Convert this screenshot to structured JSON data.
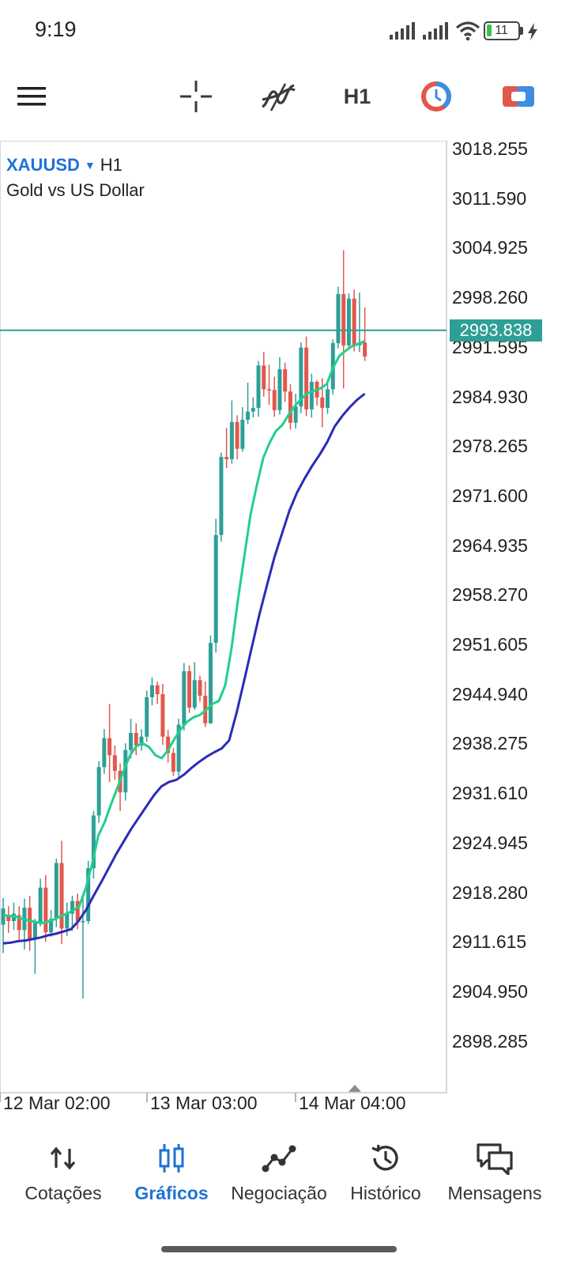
{
  "status_bar": {
    "time": "9:19",
    "battery_level": "11",
    "icons": [
      "signal-1-icon",
      "signal-2-icon",
      "wifi-icon",
      "battery-icon",
      "charging-icon"
    ]
  },
  "toolbar": {
    "icons": [
      "menu-icon",
      "crosshair-icon",
      "indicators-icon",
      "period-icon",
      "trade-icon"
    ],
    "timeframe": "H1"
  },
  "chart": {
    "symbol": "XAUUSD",
    "timeframe": "H1",
    "description": "Gold vs US Dollar",
    "current_price": "2993.838",
    "price_ticks": [
      "3018.255",
      "3011.590",
      "3004.925",
      "2998.260",
      "2991.595",
      "2984.930",
      "2978.265",
      "2971.600",
      "2964.935",
      "2958.270",
      "2951.605",
      "2944.940",
      "2938.275",
      "2931.610",
      "2924.945",
      "2918.280",
      "2911.615",
      "2904.950",
      "2898.285"
    ],
    "time_ticks": [
      "12 Mar 02:00",
      "13 Mar 03:00",
      "14 Mar 04:00"
    ],
    "colors": {
      "bull": "#2e9f97",
      "bear": "#e2574c",
      "ma_fast": "#21d08a",
      "ma_slow": "#2b2bb8",
      "price_line": "#2e9f97"
    }
  },
  "chart_data": {
    "type": "candlestick",
    "ylim": [
      2894.0,
      3021.0
    ],
    "x_ticks": [
      "12 Mar 02:00",
      "13 Mar 03:00",
      "14 Mar 04:00"
    ],
    "y_ticks": [
      3018.255,
      3011.59,
      3004.925,
      2998.26,
      2991.595,
      2984.93,
      2978.265,
      2971.6,
      2964.935,
      2958.27,
      2951.605,
      2944.94,
      2938.275,
      2931.61,
      2924.945,
      2918.28,
      2911.615,
      2904.95,
      2898.285
    ],
    "current_price": 2993.838,
    "candles": [
      [
        2913.9,
        2916.1,
        2910.1,
        2917.5
      ],
      [
        2915.2,
        2914.4,
        2912.8,
        2916.4
      ],
      [
        2914.4,
        2915.4,
        2913.2,
        2916.9
      ],
      [
        2915.2,
        2913.2,
        2911.9,
        2916.4
      ],
      [
        2913.2,
        2916.2,
        2910.6,
        2917.4
      ],
      [
        2916.2,
        2911.9,
        2910.4,
        2917.8
      ],
      [
        2911.9,
        2914.2,
        2907.3,
        2914.7
      ],
      [
        2914.2,
        2918.9,
        2913.7,
        2920.1
      ],
      [
        2918.9,
        2912.9,
        2911.6,
        2920.6
      ],
      [
        2912.9,
        2914.7,
        2912.3,
        2915.9
      ],
      [
        2914.7,
        2922.2,
        2913.6,
        2922.8
      ],
      [
        2922.2,
        2913.4,
        2911.3,
        2925.2
      ],
      [
        2913.4,
        2915.4,
        2912.4,
        2916.9
      ],
      [
        2915.4,
        2917.1,
        2913.1,
        2917.8
      ],
      [
        2917.1,
        2914.4,
        2913.3,
        2918.1
      ],
      [
        2914.4,
        2914.4,
        2904.0,
        2917.9
      ],
      [
        2914.4,
        2921.5,
        2914.0,
        2922.5
      ],
      [
        2921.5,
        2928.6,
        2920.1,
        2929.2
      ],
      [
        2928.6,
        2935.1,
        2927.6,
        2935.9
      ],
      [
        2935.1,
        2939.0,
        2934.2,
        2940.2
      ],
      [
        2939.0,
        2936.7,
        2933.1,
        2943.6
      ],
      [
        2936.7,
        2934.6,
        2933.4,
        2938.0
      ],
      [
        2934.6,
        2931.7,
        2929.2,
        2935.6
      ],
      [
        2931.7,
        2937.4,
        2930.6,
        2938.3
      ],
      [
        2937.4,
        2939.7,
        2936.3,
        2941.6
      ],
      [
        2939.7,
        2938.0,
        2936.7,
        2941.0
      ],
      [
        2938.0,
        2939.2,
        2937.3,
        2940.2
      ],
      [
        2939.2,
        2944.5,
        2938.5,
        2945.4
      ],
      [
        2944.5,
        2946.1,
        2943.4,
        2947.2
      ],
      [
        2946.1,
        2944.9,
        2943.6,
        2946.6
      ],
      [
        2944.9,
        2939.2,
        2938.1,
        2946.3
      ],
      [
        2939.2,
        2937.0,
        2935.7,
        2940.1
      ],
      [
        2937.0,
        2934.5,
        2933.9,
        2937.7
      ],
      [
        2934.5,
        2940.8,
        2933.7,
        2941.6
      ],
      [
        2940.8,
        2948.0,
        2940.0,
        2949.1
      ],
      [
        2948.0,
        2943.1,
        2942.4,
        2948.8
      ],
      [
        2943.1,
        2946.8,
        2942.8,
        2949.2
      ],
      [
        2946.8,
        2944.7,
        2943.9,
        2947.4
      ],
      [
        2944.7,
        2941.0,
        2940.5,
        2946.6
      ],
      [
        2941.0,
        2951.8,
        2940.9,
        2952.8
      ],
      [
        2951.8,
        2966.3,
        2950.5,
        2968.5
      ],
      [
        2966.3,
        2976.8,
        2965.4,
        2977.4
      ],
      [
        2976.8,
        2976.5,
        2975.3,
        2980.7
      ],
      [
        2976.5,
        2981.5,
        2975.9,
        2984.4
      ],
      [
        2981.5,
        2977.9,
        2976.5,
        2982.4
      ],
      [
        2977.9,
        2981.8,
        2977.5,
        2983.5
      ],
      [
        2981.8,
        2982.9,
        2981.2,
        2986.8
      ],
      [
        2982.9,
        2983.4,
        2982.1,
        2984.8
      ],
      [
        2983.4,
        2989.1,
        2982.2,
        2989.7
      ],
      [
        2989.1,
        2985.9,
        2984.9,
        2990.9
      ],
      [
        2985.9,
        2985.8,
        2983.8,
        2989.2
      ],
      [
        2985.8,
        2983.1,
        2982.2,
        2987.6
      ],
      [
        2983.1,
        2988.6,
        2982.5,
        2990.2
      ],
      [
        2988.6,
        2985.6,
        2984.2,
        2989.5
      ],
      [
        2985.6,
        2981.4,
        2980.5,
        2986.6
      ],
      [
        2981.4,
        2983.6,
        2980.6,
        2985.3
      ],
      [
        2983.6,
        2991.5,
        2982.7,
        2992.2
      ],
      [
        2991.5,
        2983.2,
        2982.3,
        2993.0
      ],
      [
        2983.2,
        2986.9,
        2982.1,
        2988.0
      ],
      [
        2986.9,
        2984.8,
        2983.7,
        2987.1
      ],
      [
        2984.8,
        2983.4,
        2980.8,
        2987.4
      ],
      [
        2983.4,
        2985.9,
        2982.6,
        2986.7
      ],
      [
        2985.9,
        2992.1,
        2985.2,
        2992.6
      ],
      [
        2992.1,
        2998.7,
        2991.4,
        2999.7
      ],
      [
        2998.7,
        2991.8,
        2986.0,
        3004.6
      ],
      [
        2991.8,
        2998.1,
        2991.2,
        2998.8
      ],
      [
        2998.1,
        2991.8,
        2991.0,
        2999.3
      ],
      [
        2991.8,
        2992.2,
        2990.9,
        2998.9
      ],
      [
        2992.2,
        2990.3,
        2989.7,
        2996.9
      ]
    ],
    "series": [
      {
        "name": "",
        "color": "#21d08a",
        "values": [
          2915.2,
          2915.1,
          2915.0,
          2914.7,
          2914.5,
          2914.3,
          2914.1,
          2914.3,
          2914.6,
          2915.0,
          2915.4,
          2915.8,
          2916.4,
          2918.8,
          2922.0,
          2925.9,
          2927.7,
          2930.1,
          2932.3,
          2934.6,
          2936.7,
          2937.9,
          2938.3,
          2937.8,
          2936.7,
          2936.3,
          2937.4,
          2938.9,
          2940.2,
          2941.2,
          2941.8,
          2942.1,
          2942.8,
          2943.6,
          2944.0,
          2946.1,
          2951.1,
          2957.6,
          2963.4,
          2969.1,
          2973.1,
          2976.7,
          2978.7,
          2980.3,
          2981.1,
          2982.5,
          2983.7,
          2984.6,
          2985.4,
          2985.7,
          2986.0,
          2986.6,
          2988.8,
          2990.4,
          2991.1,
          2991.7,
          2992.0,
          2992.4
        ]
      },
      {
        "name": "",
        "color": "#2b2bb8",
        "values": [
          2911.4,
          2911.5,
          2911.7,
          2911.8,
          2912.0,
          2912.2,
          2912.5,
          2912.7,
          2913.0,
          2913.3,
          2914.4,
          2915.9,
          2917.8,
          2919.6,
          2921.5,
          2923.4,
          2925.1,
          2926.8,
          2928.3,
          2929.8,
          2931.3,
          2932.5,
          2933.1,
          2933.4,
          2934.1,
          2935.0,
          2935.8,
          2936.5,
          2937.1,
          2937.6,
          2938.7,
          2942.5,
          2946.8,
          2951.2,
          2955.6,
          2959.5,
          2963.3,
          2966.5,
          2969.6,
          2972.0,
          2973.9,
          2975.6,
          2977.1,
          2978.8,
          2980.9,
          2982.3,
          2983.5,
          2984.5,
          2985.3
        ]
      }
    ]
  },
  "bottom_nav": {
    "items": [
      {
        "label": "Cotações",
        "icon": "quotes-icon",
        "active": false
      },
      {
        "label": "Gráficos",
        "icon": "charts-icon",
        "active": true
      },
      {
        "label": "Negociação",
        "icon": "trade-icon",
        "active": false
      },
      {
        "label": "Histórico",
        "icon": "history-icon",
        "active": false
      },
      {
        "label": "Mensagens",
        "icon": "messages-icon",
        "active": false
      }
    ]
  }
}
